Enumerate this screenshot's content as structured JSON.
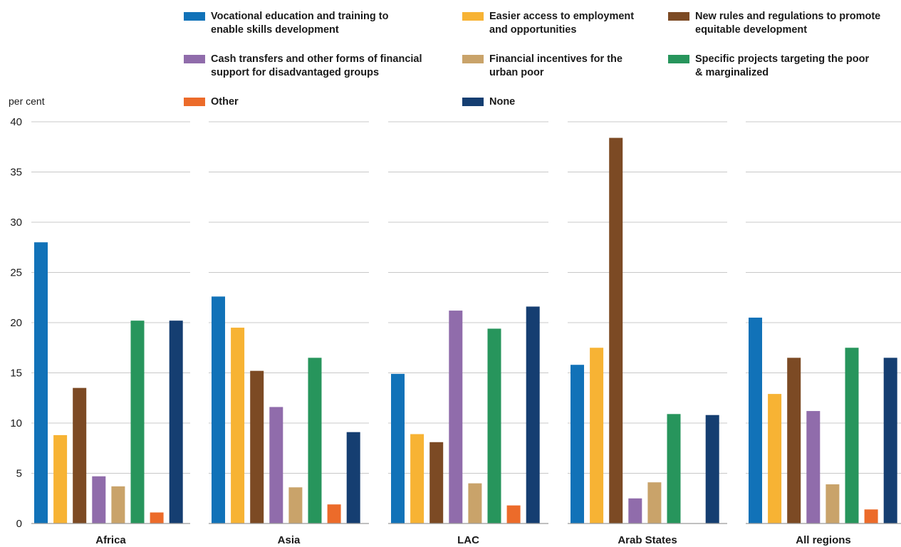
{
  "chart_data": {
    "type": "bar",
    "ylabel": "per cent",
    "ylim": [
      0,
      40
    ],
    "yticks": [
      0,
      5,
      10,
      15,
      20,
      25,
      30,
      35,
      40
    ],
    "grid": true,
    "legend_position": "top",
    "categories": [
      "Africa",
      "Asia",
      "LAC",
      "Arab States",
      "All regions"
    ],
    "series": [
      {
        "name": "Vocational education and training to enable skills development",
        "color": "#1172b8",
        "values": [
          28.0,
          22.6,
          14.9,
          15.8,
          20.5
        ]
      },
      {
        "name": "Easier access to employment and opportunities",
        "color": "#f7b334",
        "values": [
          8.8,
          19.5,
          8.9,
          17.5,
          12.9
        ]
      },
      {
        "name": "New rules and regulations to promote equitable development",
        "color": "#7c4a24",
        "values": [
          13.5,
          15.2,
          8.1,
          38.4,
          16.5
        ]
      },
      {
        "name": "Cash transfers and other forms of financial support for disadvantaged groups",
        "color": "#906cab",
        "values": [
          4.7,
          11.6,
          21.2,
          2.5,
          11.2
        ]
      },
      {
        "name": "Financial incentives for the urban poor",
        "color": "#c9a36a",
        "values": [
          3.7,
          3.6,
          4.0,
          4.1,
          3.9
        ]
      },
      {
        "name": "Specific projects targeting the poor & marginalized",
        "color": "#27955c",
        "values": [
          20.2,
          16.5,
          19.4,
          10.9,
          17.5
        ]
      },
      {
        "name": "Other",
        "color": "#ec6b2a",
        "values": [
          1.1,
          1.9,
          1.8,
          0,
          1.4
        ]
      },
      {
        "name": "None",
        "color": "#153e71",
        "values": [
          20.2,
          9.1,
          21.6,
          10.8,
          16.5
        ]
      }
    ]
  },
  "legend": {
    "labels": [
      [
        "Vocational education and training to",
        "enable skills development"
      ],
      [
        "Easier access to employment",
        "and opportunities"
      ],
      [
        "New rules and regulations to promote",
        "equitable development"
      ],
      [
        "Cash transfers and other forms of financial",
        "support for disadvantaged groups"
      ],
      [
        "Financial incentives for the",
        "urban poor"
      ],
      [
        "Specific projects targeting the poor",
        "& marginalized"
      ],
      [
        "Other"
      ],
      [
        "None"
      ]
    ]
  }
}
